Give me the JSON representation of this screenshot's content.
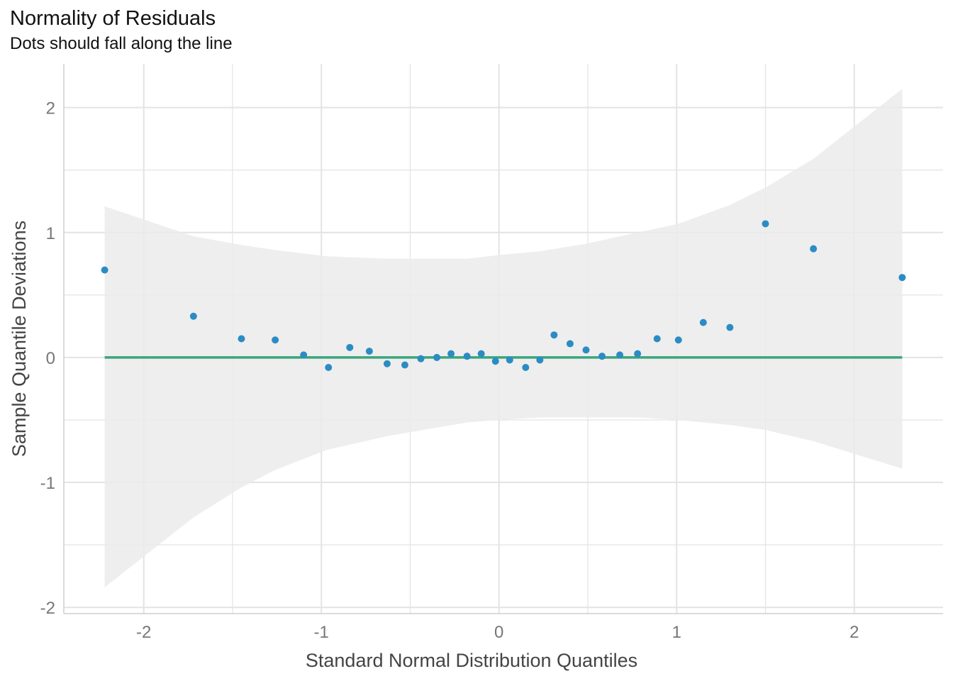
{
  "chart_data": {
    "type": "scatter",
    "title": "Normality of Residuals",
    "subtitle": "Dots should fall along the line",
    "xlabel": "Standard Normal Distribution Quantiles",
    "ylabel": "Sample Quantile Deviations",
    "xlim": [
      -2.45,
      2.5
    ],
    "ylim": [
      -2.05,
      2.35
    ],
    "xticks": [
      -2,
      -1,
      0,
      1,
      2
    ],
    "yticks": [
      -2,
      -1,
      0,
      1,
      2
    ],
    "grid": true,
    "colors": {
      "points": "#2b8cc4",
      "line": "#3aa57c",
      "band": "#ebebeb",
      "grid": "#e3e3e3"
    },
    "points": {
      "x": [
        -2.22,
        -1.72,
        -1.45,
        -1.26,
        -1.1,
        -0.96,
        -0.84,
        -0.73,
        -0.63,
        -0.53,
        -0.44,
        -0.35,
        -0.27,
        -0.18,
        -0.1,
        -0.02,
        0.06,
        0.15,
        0.23,
        0.31,
        0.4,
        0.49,
        0.58,
        0.68,
        0.78,
        0.89,
        1.01,
        1.15,
        1.3,
        1.5,
        1.77,
        2.27
      ],
      "y": [
        0.7,
        0.33,
        0.15,
        0.14,
        0.02,
        -0.08,
        0.08,
        0.05,
        -0.05,
        -0.06,
        -0.01,
        0.0,
        0.03,
        0.01,
        0.03,
        -0.03,
        -0.02,
        -0.08,
        -0.02,
        0.18,
        0.11,
        0.06,
        0.01,
        0.02,
        0.03,
        0.15,
        0.14,
        0.28,
        0.24,
        1.07,
        0.87,
        0.64
      ]
    },
    "reference_line": {
      "x": [
        -2.22,
        2.27
      ],
      "y": [
        0,
        0
      ]
    },
    "confidence_band": {
      "x": [
        -2.22,
        -1.72,
        -1.45,
        -1.26,
        -0.97,
        -0.63,
        -0.18,
        0.0,
        0.23,
        0.49,
        0.78,
        1.01,
        1.3,
        1.5,
        1.77,
        2.27
      ],
      "upper": [
        1.21,
        0.97,
        0.9,
        0.86,
        0.81,
        0.79,
        0.79,
        0.82,
        0.85,
        0.91,
        1.0,
        1.07,
        1.22,
        1.36,
        1.59,
        2.15
      ],
      "lower": [
        -1.84,
        -1.28,
        -1.04,
        -0.9,
        -0.74,
        -0.63,
        -0.52,
        -0.5,
        -0.48,
        -0.48,
        -0.48,
        -0.5,
        -0.54,
        -0.58,
        -0.67,
        -0.89
      ]
    }
  }
}
